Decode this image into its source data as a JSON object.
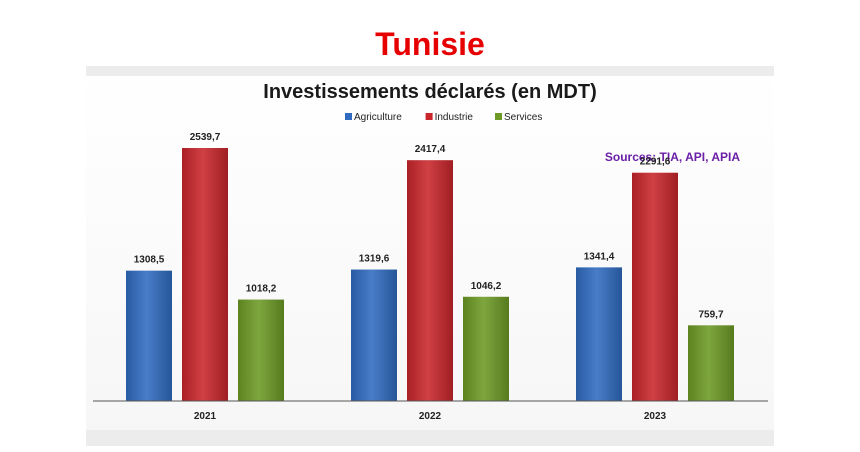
{
  "header": {
    "title": "Tunisie"
  },
  "chart_data": {
    "type": "bar",
    "title": "Investissements déclarés (en MDT)",
    "source": "Sources: TIA, API, APIA",
    "categories": [
      "2021",
      "2022",
      "2023"
    ],
    "series": [
      {
        "name": "Agriculture",
        "color": "#2f6bbf",
        "values": [
          1308.5,
          1319.6,
          1341.4
        ],
        "labels": [
          "1308,5",
          "1319,6",
          "1341,4"
        ]
      },
      {
        "name": "Industrie",
        "color": "#c8262b",
        "values": [
          2539.7,
          2417.4,
          2291.6
        ],
        "labels": [
          "2539,7",
          "2417,4",
          "2291,6"
        ]
      },
      {
        "name": "Services",
        "color": "#6c9a25",
        "values": [
          1018.2,
          1046.2,
          759.7
        ],
        "labels": [
          "1018,2",
          "1046,2",
          "759,7"
        ]
      }
    ],
    "legend_position": "top-center",
    "grid": false,
    "ylim": [
      0,
      3000
    ]
  }
}
